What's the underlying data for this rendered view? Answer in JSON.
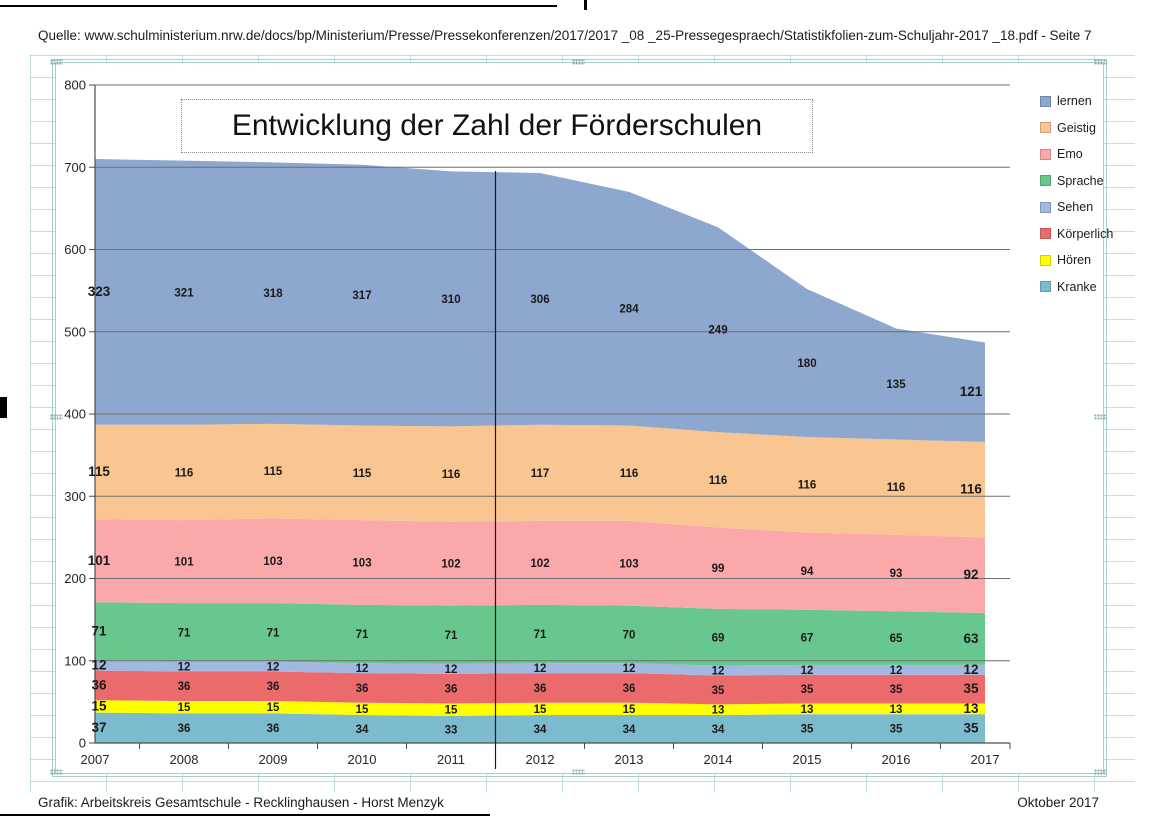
{
  "page": {
    "source_line": "Quelle: www.schulministerium.nrw.de/docs/bp/Ministerium/Presse/Pressekonferenzen/2017/2017 _08 _25-Pressegespraech/Statistikfolien-zum-Schuljahr-2017 _18.pdf - Seite 7",
    "footer_left": "Grafik: Arbeitskreis Gesamtschule - Recklinghausen - Horst Menzyk",
    "footer_right": "Oktober 2017"
  },
  "chart_data": {
    "type": "area",
    "stacked": true,
    "title": "Entwicklung der Zahl der Förderschulen",
    "categories": [
      "2007",
      "2008",
      "2009",
      "2010",
      "2011",
      "2012",
      "2013",
      "2014",
      "2015",
      "2016",
      "2017"
    ],
    "series": [
      {
        "name": "lernen",
        "color": "#8da7cf",
        "values": [
          323,
          321,
          318,
          317,
          310,
          306,
          284,
          249,
          180,
          135,
          121
        ]
      },
      {
        "name": "Geistig",
        "color": "#f9c591",
        "values": [
          115,
          116,
          115,
          115,
          116,
          117,
          116,
          116,
          116,
          116,
          116
        ]
      },
      {
        "name": "Emo",
        "color": "#faa8aa",
        "values": [
          101,
          101,
          103,
          103,
          102,
          102,
          103,
          99,
          94,
          93,
          92
        ]
      },
      {
        "name": "Sprache",
        "color": "#67c78e",
        "values": [
          71,
          71,
          71,
          71,
          71,
          71,
          70,
          69,
          67,
          65,
          63
        ]
      },
      {
        "name": "Sehen",
        "color": "#a2b8e0",
        "values": [
          12,
          12,
          12,
          12,
          12,
          12,
          12,
          12,
          12,
          12,
          12
        ]
      },
      {
        "name": "Körperlich",
        "color": "#eb6b6d",
        "values": [
          36,
          36,
          36,
          36,
          36,
          36,
          36,
          35,
          35,
          35,
          35
        ]
      },
      {
        "name": "Hören",
        "color": "#ffff00",
        "values": [
          15,
          15,
          15,
          15,
          15,
          15,
          15,
          13,
          13,
          13,
          13
        ]
      },
      {
        "name": "Kranke",
        "color": "#7cbbcd",
        "values": [
          37,
          36,
          36,
          34,
          33,
          34,
          34,
          34,
          35,
          35,
          35
        ]
      }
    ],
    "ylim": [
      0,
      800
    ],
    "ytick_step": 100,
    "grid": true,
    "legend_position": "right",
    "stacking_order": "reverse_of_legend",
    "divider_between": [
      "2011",
      "2012"
    ]
  }
}
